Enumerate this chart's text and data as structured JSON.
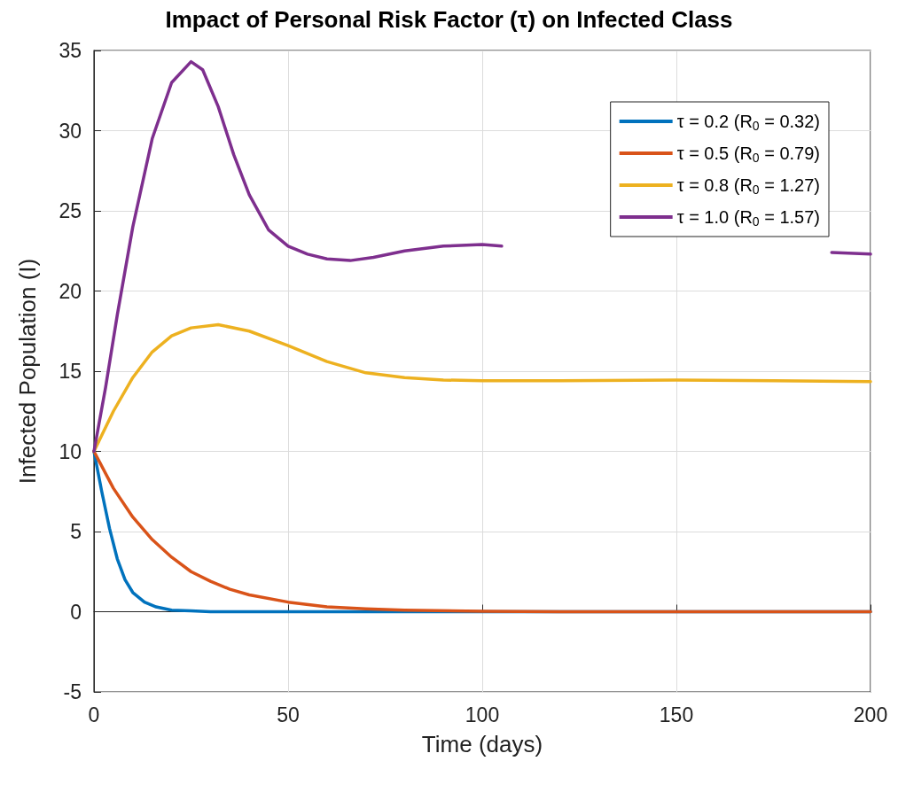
{
  "chart_data": {
    "type": "line",
    "title": "Impact of Personal Risk Factor (τ) on Infected Class",
    "xlabel": "Time (days)",
    "ylabel": "Infected Population (I)",
    "xlim": [
      0,
      200
    ],
    "xticks": [
      0,
      50,
      100,
      150,
      200
    ],
    "ylim": [
      -5,
      35
    ],
    "yticks": [
      -5,
      0,
      5,
      10,
      15,
      20,
      25,
      30,
      35
    ],
    "grid": true,
    "legend": "top right",
    "marker": "none",
    "line_style": "solid",
    "series": [
      {
        "name": "τ = 0.2 (R$_{0}$ = 0.32)",
        "color": "#0072bd",
        "x": [
          0,
          2,
          4,
          6,
          8,
          10,
          13,
          16,
          20,
          25,
          30,
          200
        ],
        "values": [
          10,
          7.5,
          5.2,
          3.3,
          2.0,
          1.2,
          0.6,
          0.3,
          0.1,
          0.05,
          0,
          0
        ]
      },
      {
        "name": "τ = 0.5 (R$_{0}$ = 0.79)",
        "color": "#d95319",
        "x": [
          0,
          5,
          10,
          15,
          20,
          25,
          30,
          35,
          40,
          50,
          60,
          70,
          80,
          100,
          120,
          200
        ],
        "values": [
          10,
          7.7,
          5.9,
          4.5,
          3.4,
          2.5,
          1.9,
          1.4,
          1.05,
          0.6,
          0.3,
          0.18,
          0.1,
          0.03,
          0,
          0
        ]
      },
      {
        "name": "τ = 0.8 (R$_{0}$ = 1.27)",
        "color": "#edb120",
        "x": [
          0,
          5,
          10,
          15,
          20,
          25,
          32,
          40,
          50,
          60,
          70,
          80,
          90,
          100,
          120,
          150,
          175,
          200
        ],
        "values": [
          10,
          12.5,
          14.6,
          16.2,
          17.2,
          17.7,
          17.9,
          17.5,
          16.6,
          15.6,
          14.9,
          14.6,
          14.45,
          14.4,
          14.4,
          14.45,
          14.4,
          14.35
        ]
      },
      {
        "name": "τ = 1.0 (R$_{0}$ = 1.57)",
        "color": "#7e2f8e",
        "x": [
          0,
          3,
          6,
          10,
          15,
          20,
          25,
          28,
          32,
          36,
          40,
          45,
          50,
          55,
          60,
          66,
          72,
          80,
          90,
          100,
          105,
          110,
          185,
          190,
          200
        ],
        "values": [
          10,
          14,
          18.5,
          24,
          29.5,
          33,
          34.3,
          33.8,
          31.5,
          28.5,
          26,
          23.8,
          22.8,
          22.3,
          22,
          21.9,
          22.1,
          22.5,
          22.8,
          22.9,
          22.8,
          null,
          null,
          22.4,
          22.3
        ]
      }
    ]
  }
}
